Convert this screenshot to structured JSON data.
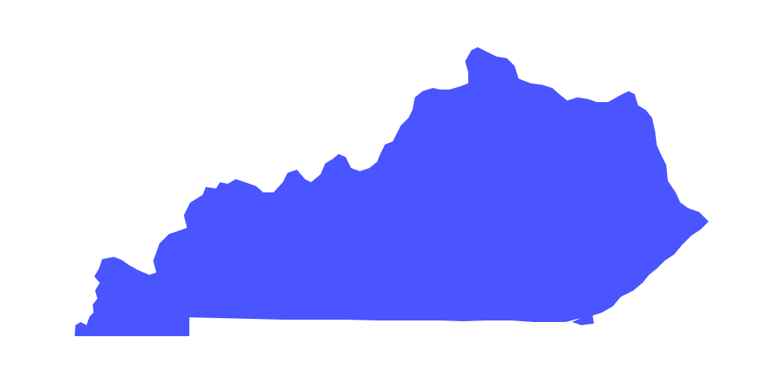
{
  "map": {
    "region": "Kentucky",
    "fill_color": "#4a55ff",
    "background_color": "#ffffff"
  }
}
